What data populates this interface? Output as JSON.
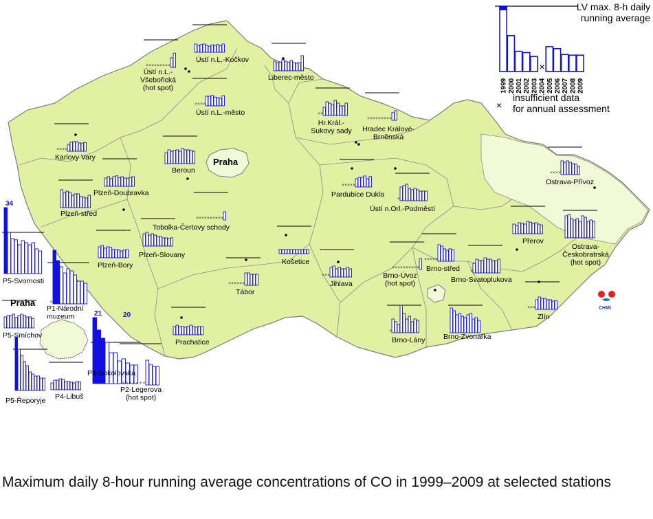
{
  "caption": "Maximum daily 8-hour running average concentrations of CO in 1999–2009 at selected stations",
  "colors": {
    "country_fill": "#e2f0a4",
    "region_fill": "#f2f9d8",
    "border": "#8a8a8a",
    "bar": "#1010e0",
    "bar_fill": "#ffffff",
    "limit_line": "#000000"
  },
  "legend": {
    "limit_label": "LV max. 8-h daily running average",
    "limit_label_line1": "LV max. 8-h daily",
    "limit_label_line2": "running average",
    "insufficient_label_line1": "insufficient data",
    "insufficient_label_line2": "for annual assessment",
    "insufficient_symbol": "×",
    "years": [
      "1999",
      "2000",
      "2001",
      "2002",
      "2003",
      "2004",
      "2005",
      "2006",
      "2007",
      "2008",
      "2009"
    ],
    "sample_values": [
      1.0,
      0.55,
      0.31,
      0.29,
      0.23,
      null,
      0.38,
      0.35,
      0.26,
      0.25,
      0.25
    ],
    "sample_exceeding": [
      true,
      false,
      false,
      false,
      false,
      false,
      false,
      false,
      false,
      false,
      false
    ]
  },
  "logo_text": "CHMI",
  "praha_label": "Praha",
  "praha_inset_label": "Praha",
  "stations": [
    {
      "name": "Ústí n.L.-Kočkov",
      "values": [
        0.3,
        0.25,
        0.28,
        0.3,
        0.26,
        0.22,
        0.27,
        0.25,
        0.28,
        0.24,
        0.3
      ]
    },
    {
      "name": "Ústí n.L.-Všebořická (hot spot)",
      "lines": [
        "Ústí n.L.-",
        "Všebořická",
        "(hot spot)"
      ],
      "values": [
        null,
        null,
        null,
        null,
        null,
        null,
        null,
        null,
        null,
        0.35,
        0.52
      ]
    },
    {
      "name": "Ústí n.L.-město",
      "values": [
        null,
        null,
        null,
        null,
        0.35,
        0.35,
        0.38,
        0.32,
        0.3,
        0.28,
        0.37
      ]
    },
    {
      "name": "Liberec-město",
      "values": [
        0.35,
        0.3,
        0.32,
        0.4,
        0.35,
        0.32,
        0.38,
        0.3,
        0.28,
        0.3,
        0.55
      ]
    },
    {
      "name": "Karlovy Vary",
      "values": [
        null,
        null,
        null,
        null,
        0.25,
        0.33,
        0.35,
        0.35,
        0.3,
        0.3,
        0.32
      ]
    },
    {
      "name": "Hr.Král.-Sukovy sady",
      "lines": [
        "Hr.Král.-",
        "Sukovy sady"
      ],
      "values": [
        null,
        null,
        0.3,
        0.5,
        0.45,
        0.4,
        0.55,
        0.45,
        0.35,
        0.35,
        0.45
      ]
    },
    {
      "name": "Hradec Králové-Brněnská",
      "lines": [
        "Hradec Králové-",
        "Brněnská"
      ],
      "values": [
        null,
        null,
        null,
        null,
        null,
        null,
        null,
        null,
        null,
        0.28,
        0.35
      ]
    },
    {
      "name": "Beroun",
      "values": [
        0.4,
        0.5,
        0.45,
        0.48,
        0.5,
        0.45,
        0.55,
        0.5,
        0.5,
        0.48,
        0.45
      ]
    },
    {
      "name": "Plzeň-Doubravka",
      "values": [
        0.3,
        0.35,
        0.28,
        0.35,
        0.38,
        0.32,
        0.35,
        0.3,
        0.3,
        0.32,
        0.35
      ]
    },
    {
      "name": "Plzeň-střed",
      "values": [
        0.65,
        0.55,
        0.6,
        0.55,
        0.45,
        0.5,
        0.5,
        0.4,
        0.38,
        0.35,
        0.45
      ]
    },
    {
      "name": "Pardubice Dukla",
      "values": [
        null,
        null,
        null,
        null,
        null,
        0.3,
        0.35,
        0.35,
        0.4,
        0.3,
        0.38
      ]
    },
    {
      "name": "Ústí n.Orl.-Podměstí",
      "values": [
        null,
        0.5,
        0.55,
        0.6,
        0.45,
        0.4,
        0.45,
        0.4,
        0.35,
        0.35,
        0.35
      ]
    },
    {
      "name": "Ostrava-Přívoz",
      "values": [
        null,
        null,
        null,
        null,
        0.5,
        0.45,
        0.5,
        0.45,
        0.4,
        0.38,
        0.3
      ]
    },
    {
      "name": "Tobolka-Čertovy schody",
      "values": [
        null,
        null,
        null,
        null,
        null,
        null,
        null,
        null,
        null,
        null,
        0.3
      ]
    },
    {
      "name": "Přerov",
      "values": [
        0.35,
        0.3,
        0.4,
        0.38,
        0.35,
        0.45,
        0.42,
        0.38,
        0.4,
        0.35,
        0.32
      ]
    },
    {
      "name": "Ostrava-Českobratrská (hot spot)",
      "lines": [
        "Ostrava-",
        "Českobratrská",
        "(hot spot)"
      ],
      "values": [
        0.8,
        0.85,
        0.7,
        0.65,
        0.7,
        0.6,
        0.8,
        0.75,
        0.6,
        0.65,
        0.6
      ]
    },
    {
      "name": "Plzeň-Slovany",
      "values": [
        0.45,
        0.5,
        0.4,
        0.45,
        0.4,
        0.35,
        0.35,
        0.3,
        0.3,
        0.28,
        0.3
      ]
    },
    {
      "name": "Plzeň-Bory",
      "values": [
        0.4,
        0.45,
        0.35,
        0.4,
        0.38,
        0.3,
        0.3,
        0.28,
        0.25,
        0.28,
        0.3
      ]
    },
    {
      "name": "Košetice",
      "values": [
        0.15,
        0.15,
        0.15,
        0.15,
        0.15,
        0.15,
        0.15,
        0.15,
        0.15,
        0.15,
        0.15
      ]
    },
    {
      "name": "Jihlava",
      "values": [
        null,
        null,
        null,
        0.35,
        0.4,
        0.3,
        0.35,
        0.3,
        0.3,
        0.35,
        0.3
      ]
    },
    {
      "name": "Brno-střed",
      "values": [
        null,
        null,
        null,
        null,
        null,
        0.6,
        0.55,
        0.45,
        0.4,
        0.45,
        0.42
      ]
    },
    {
      "name": "Brno-Úvoz (hot spot)",
      "lines": [
        "Brno-Úvoz",
        "(hot spot)"
      ],
      "values": [
        null,
        null,
        null,
        null,
        null,
        null,
        null,
        null,
        null,
        null,
        0.4
      ]
    },
    {
      "name": "Brno-Svatoplukova",
      "values": [
        null,
        0.35,
        0.5,
        0.45,
        0.45,
        0.55,
        0.5,
        0.5,
        0.45,
        0.45,
        0.5
      ]
    },
    {
      "name": "Tábor",
      "values": [
        null,
        null,
        null,
        null,
        null,
        null,
        0.45,
        0.45,
        0.4,
        0.4,
        0.4
      ]
    },
    {
      "name": "Zlín",
      "values": [
        null,
        null,
        null,
        0.35,
        0.45,
        0.4,
        0.4,
        0.35,
        0.35,
        0.3,
        0.32
      ]
    },
    {
      "name": "Prachatice",
      "values": [
        0.3,
        0.35,
        0.3,
        0.3,
        0.28,
        0.3,
        0.35,
        0.3,
        0.28,
        0.3,
        0.3
      ]
    },
    {
      "name": "Brno-Lány",
      "values": [
        null,
        0.5,
        0.4,
        0.3,
        1.0,
        0.7,
        0.5,
        0.6,
        0.4,
        0.5,
        0.45
      ]
    },
    {
      "name": "Brno-Zvonařka",
      "values": [
        0.9,
        0.8,
        0.65,
        0.7,
        0.6,
        0.55,
        0.65,
        0.7,
        0.5,
        0.55,
        0.45
      ]
    },
    {
      "name": "P5-Svornosti",
      "values": [
        2.1,
        1.0,
        0.85,
        0.82,
        0.7,
        0.8,
        0.75,
        0.7,
        0.75,
        0.6,
        0.55
      ],
      "exceed_label": "34"
    },
    {
      "name": "P1-Národní muzeum",
      "lines": [
        "P1-Národní",
        "muzeum"
      ],
      "values": [
        null,
        1.3,
        1.05,
        0.9,
        0.75,
        0.85,
        0.8,
        0.7,
        0.55,
        0.55,
        0.5
      ]
    },
    {
      "name": "P8-Sokolovská",
      "values": [
        1.9,
        1.3,
        1.1,
        1.0,
        0.75,
        0.75,
        0.55,
        0.6,
        0.5,
        0.45,
        0.45
      ],
      "exceed_label": "21"
    },
    {
      "name": "P5-Smíchov",
      "values": [
        0.4,
        0.45,
        0.45,
        0.5,
        0.38,
        0.45,
        0.5,
        0.45,
        0.4,
        0.4,
        0.35
      ]
    },
    {
      "name": "P2-Legerova (hot spot)",
      "lines": [
        "P2-Legerova",
        "(hot spot)"
      ],
      "values": [
        null,
        null,
        null,
        null,
        null,
        null,
        null,
        0.6,
        0.5,
        0.45,
        0.45
      ],
      "exceed_label": "20"
    },
    {
      "name": "P5-Řeporyje",
      "values": [
        1.3,
        1.0,
        0.85,
        0.7,
        0.6,
        0.45,
        0.4,
        0.35,
        0.35,
        0.3,
        0.3
      ]
    },
    {
      "name": "P4-Libuš",
      "values": [
        0.25,
        0.35,
        0.35,
        0.4,
        0.38,
        0.3,
        0.3,
        0.28,
        0.25,
        0.3,
        0.28
      ]
    }
  ]
}
